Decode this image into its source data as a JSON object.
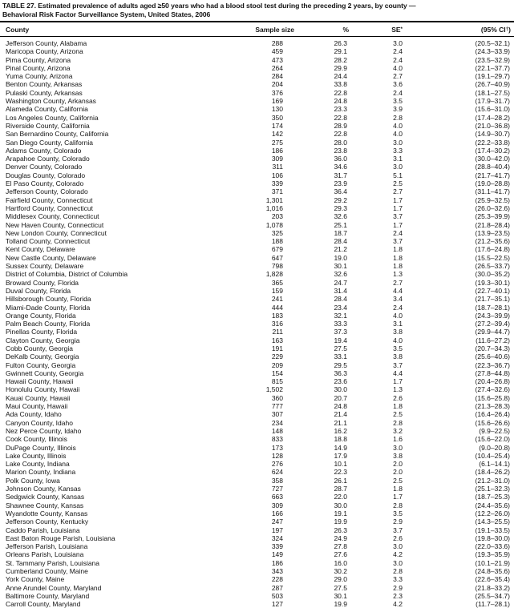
{
  "title": {
    "line1": "TABLE 27. Estimated prevalence of adults aged ≥50 years who had a blood stool test during the preceding 2 years, by county —",
    "line2": "Behavioral Risk Factor Surveillance System, United States, 2006"
  },
  "table": {
    "headers": {
      "county": "County",
      "sample_size": "Sample size",
      "percent": "%",
      "se_base": "SE",
      "se_sup": "*",
      "ci_base": "(95% CI",
      "ci_sup": "†",
      "ci_close": ")"
    },
    "rows": [
      [
        "Jefferson County, Alabama",
        "288",
        "26.3",
        "3.0",
        "(20.5–32.1)"
      ],
      [
        "Maricopa County, Arizona",
        "459",
        "29.1",
        "2.4",
        "(24.3–33.9)"
      ],
      [
        "Pima County, Arizona",
        "473",
        "28.2",
        "2.4",
        "(23.5–32.9)"
      ],
      [
        "Pinal County, Arizona",
        "264",
        "29.9",
        "4.0",
        "(22.1–37.7)"
      ],
      [
        "Yuma County, Arizona",
        "284",
        "24.4",
        "2.7",
        "(19.1–29.7)"
      ],
      [
        "Benton County, Arkansas",
        "204",
        "33.8",
        "3.6",
        "(26.7–40.9)"
      ],
      [
        "Pulaski County, Arkansas",
        "376",
        "22.8",
        "2.4",
        "(18.1–27.5)"
      ],
      [
        "Washington County, Arkansas",
        "169",
        "24.8",
        "3.5",
        "(17.9–31.7)"
      ],
      [
        "Alameda County, California",
        "130",
        "23.3",
        "3.9",
        "(15.6–31.0)"
      ],
      [
        "Los Angeles County, California",
        "350",
        "22.8",
        "2.8",
        "(17.4–28.2)"
      ],
      [
        "Riverside County, California",
        "174",
        "28.9",
        "4.0",
        "(21.0–36.8)"
      ],
      [
        "San Bernardino County, California",
        "142",
        "22.8",
        "4.0",
        "(14.9–30.7)"
      ],
      [
        "San Diego County, California",
        "275",
        "28.0",
        "3.0",
        "(22.2–33.8)"
      ],
      [
        "Adams County, Colorado",
        "186",
        "23.8",
        "3.3",
        "(17.4–30.2)"
      ],
      [
        "Arapahoe County, Colorado",
        "309",
        "36.0",
        "3.1",
        "(30.0–42.0)"
      ],
      [
        "Denver County, Colorado",
        "311",
        "34.6",
        "3.0",
        "(28.8–40.4)"
      ],
      [
        "Douglas County, Colorado",
        "106",
        "31.7",
        "5.1",
        "(21.7–41.7)"
      ],
      [
        "El Paso County, Colorado",
        "339",
        "23.9",
        "2.5",
        "(19.0–28.8)"
      ],
      [
        "Jefferson County, Colorado",
        "371",
        "36.4",
        "2.7",
        "(31.1–41.7)"
      ],
      [
        "Fairfield County, Connecticut",
        "1,301",
        "29.2",
        "1.7",
        "(25.9–32.5)"
      ],
      [
        "Hartford County, Connecticut",
        "1,016",
        "29.3",
        "1.7",
        "(26.0–32.6)"
      ],
      [
        "Middlesex County, Connecticut",
        "203",
        "32.6",
        "3.7",
        "(25.3–39.9)"
      ],
      [
        "New Haven County, Connecticut",
        "1,078",
        "25.1",
        "1.7",
        "(21.8–28.4)"
      ],
      [
        "New London County, Connecticut",
        "325",
        "18.7",
        "2.4",
        "(13.9–23.5)"
      ],
      [
        "Tolland County, Connecticut",
        "188",
        "28.4",
        "3.7",
        "(21.2–35.6)"
      ],
      [
        "Kent County, Delaware",
        "679",
        "21.2",
        "1.8",
        "(17.6–24.8)"
      ],
      [
        "New Castle County, Delaware",
        "647",
        "19.0",
        "1.8",
        "(15.5–22.5)"
      ],
      [
        "Sussex County, Delaware",
        "798",
        "30.1",
        "1.8",
        "(26.5–33.7)"
      ],
      [
        "District of Columbia, District of Columbia",
        "1,828",
        "32.6",
        "1.3",
        "(30.0–35.2)"
      ],
      [
        "Broward County, Florida",
        "365",
        "24.7",
        "2.7",
        "(19.3–30.1)"
      ],
      [
        "Duval County, Florida",
        "159",
        "31.4",
        "4.4",
        "(22.7–40.1)"
      ],
      [
        "Hillsborough County, Florida",
        "241",
        "28.4",
        "3.4",
        "(21.7–35.1)"
      ],
      [
        "Miami-Dade County, Florida",
        "444",
        "23.4",
        "2.4",
        "(18.7–28.1)"
      ],
      [
        "Orange County, Florida",
        "183",
        "32.1",
        "4.0",
        "(24.3–39.9)"
      ],
      [
        "Palm Beach County, Florida",
        "316",
        "33.3",
        "3.1",
        "(27.2–39.4)"
      ],
      [
        "Pinellas County, Florida",
        "211",
        "37.3",
        "3.8",
        "(29.9–44.7)"
      ],
      [
        "Clayton County, Georgia",
        "163",
        "19.4",
        "4.0",
        "(11.6–27.2)"
      ],
      [
        "Cobb County, Georgia",
        "191",
        "27.5",
        "3.5",
        "(20.7–34.3)"
      ],
      [
        "DeKalb County, Georgia",
        "229",
        "33.1",
        "3.8",
        "(25.6–40.6)"
      ],
      [
        "Fulton County, Georgia",
        "209",
        "29.5",
        "3.7",
        "(22.3–36.7)"
      ],
      [
        "Gwinnett County, Georgia",
        "154",
        "36.3",
        "4.4",
        "(27.8–44.8)"
      ],
      [
        "Hawaii County, Hawaii",
        "815",
        "23.6",
        "1.7",
        "(20.4–26.8)"
      ],
      [
        "Honolulu County, Hawaii",
        "1,502",
        "30.0",
        "1.3",
        "(27.4–32.6)"
      ],
      [
        "Kauai County, Hawaii",
        "360",
        "20.7",
        "2.6",
        "(15.6–25.8)"
      ],
      [
        "Maui County, Hawaii",
        "777",
        "24.8",
        "1.8",
        "(21.3–28.3)"
      ],
      [
        "Ada County, Idaho",
        "307",
        "21.4",
        "2.5",
        "(16.4–26.4)"
      ],
      [
        "Canyon County, Idaho",
        "234",
        "21.1",
        "2.8",
        "(15.6–26.6)"
      ],
      [
        "Nez Perce County, Idaho",
        "148",
        "16.2",
        "3.2",
        "(9.9–22.5)"
      ],
      [
        "Cook County, Illinois",
        "833",
        "18.8",
        "1.6",
        "(15.6–22.0)"
      ],
      [
        "DuPage County, Illinois",
        "173",
        "14.9",
        "3.0",
        "(9.0–20.8)"
      ],
      [
        "Lake County, Illinois",
        "128",
        "17.9",
        "3.8",
        "(10.4–25.4)"
      ],
      [
        "Lake County, Indiana",
        "276",
        "10.1",
        "2.0",
        "(6.1–14.1)"
      ],
      [
        "Marion County, Indiana",
        "624",
        "22.3",
        "2.0",
        "(18.4–26.2)"
      ],
      [
        "Polk County, Iowa",
        "358",
        "26.1",
        "2.5",
        "(21.2–31.0)"
      ],
      [
        "Johnson County, Kansas",
        "727",
        "28.7",
        "1.8",
        "(25.1–32.3)"
      ],
      [
        "Sedgwick County, Kansas",
        "663",
        "22.0",
        "1.7",
        "(18.7–25.3)"
      ],
      [
        "Shawnee County, Kansas",
        "309",
        "30.0",
        "2.8",
        "(24.4–35.6)"
      ],
      [
        "Wyandotte County, Kansas",
        "166",
        "19.1",
        "3.5",
        "(12.2–26.0)"
      ],
      [
        "Jefferson County, Kentucky",
        "247",
        "19.9",
        "2.9",
        "(14.3–25.5)"
      ],
      [
        "Caddo Parish, Louisiana",
        "197",
        "26.3",
        "3.7",
        "(19.1–33.5)"
      ],
      [
        "East Baton Rouge Parish, Louisiana",
        "324",
        "24.9",
        "2.6",
        "(19.8–30.0)"
      ],
      [
        "Jefferson Parish, Louisiana",
        "339",
        "27.8",
        "3.0",
        "(22.0–33.6)"
      ],
      [
        "Orleans Parish, Louisiana",
        "149",
        "27.6",
        "4.2",
        "(19.3–35.9)"
      ],
      [
        "St. Tammany Parish, Louisiana",
        "186",
        "16.0",
        "3.0",
        "(10.1–21.9)"
      ],
      [
        "Cumberland County, Maine",
        "343",
        "30.2",
        "2.8",
        "(24.8–35.6)"
      ],
      [
        "York County, Maine",
        "228",
        "29.0",
        "3.3",
        "(22.6–35.4)"
      ],
      [
        "Anne Arundel County, Maryland",
        "287",
        "27.5",
        "2.9",
        "(21.8–33.2)"
      ],
      [
        "Baltimore County, Maryland",
        "503",
        "30.1",
        "2.3",
        "(25.5–34.7)"
      ],
      [
        "Carroll County, Maryland",
        "127",
        "19.9",
        "4.2",
        "(11.7–28.1)"
      ]
    ]
  }
}
